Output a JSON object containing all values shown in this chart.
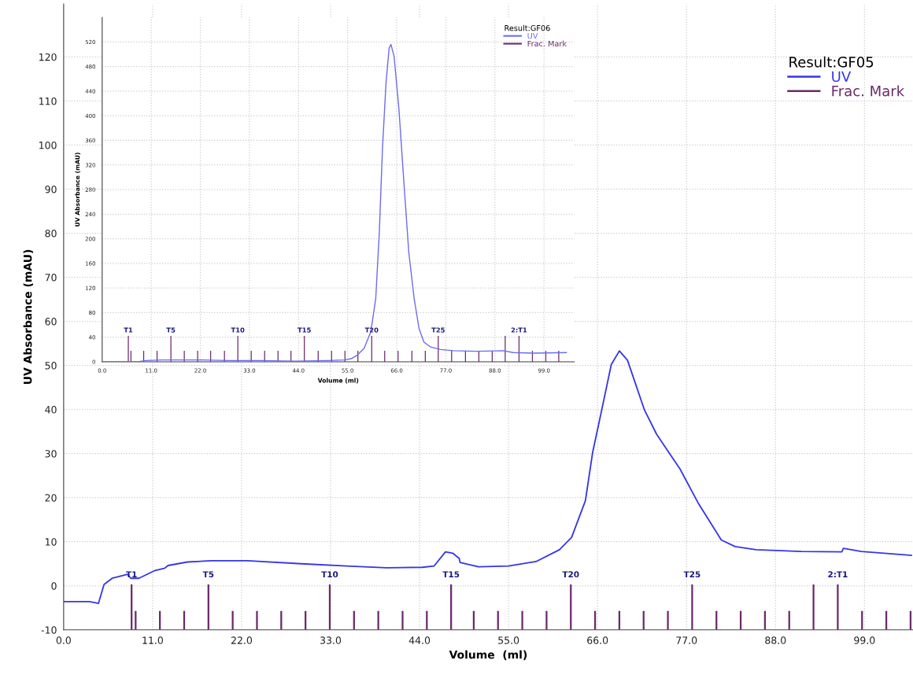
{
  "chart_data": [
    {
      "type": "line",
      "xlabel": "Volume  (ml)",
      "ylabel": "UV Absorbance (mAU)",
      "legend": "top right",
      "legend_title": "Result:GF05",
      "grid": true,
      "xlim": [
        0,
        105
      ],
      "ylim": [
        -10,
        132
      ],
      "xticks": [
        {
          "value": 0,
          "label": "0.0"
        },
        {
          "value": 11,
          "label": "11.0"
        },
        {
          "value": 22,
          "label": "22.0"
        },
        {
          "value": 33,
          "label": "33.0"
        },
        {
          "value": 44,
          "label": "44.0"
        },
        {
          "value": 55,
          "label": "55.0"
        },
        {
          "value": 66,
          "label": "66.0"
        },
        {
          "value": 77,
          "label": "77.0"
        },
        {
          "value": 88,
          "label": "88.0"
        },
        {
          "value": 99,
          "label": "99.0"
        }
      ],
      "yticks": [
        -10,
        0,
        10,
        20,
        30,
        40,
        50,
        60,
        70,
        80,
        90,
        100,
        110,
        120
      ],
      "series": [
        {
          "name": "UV",
          "color": "#3535e8",
          "x": [
            0,
            3.2,
            4.3,
            5.0,
            6.0,
            7.45,
            7.9,
            8.3,
            9.3,
            11.2,
            12.5,
            12.9,
            15.3,
            18.3,
            22.7,
            29.4,
            35.0,
            39.9,
            44.35,
            45.8,
            47.2,
            48.1,
            48.9,
            49.0,
            51.3,
            55.0,
            58.4,
            61.3,
            62.8,
            64.5,
            65.4,
            66.6,
            67.7,
            68.7,
            69.7,
            71.8,
            73.3,
            74.8,
            76.2,
            78.5,
            81.3,
            83.0,
            85.6,
            91.2,
            96.2,
            96.4,
            98.6,
            104.8
          ],
          "values": [
            -3.6,
            -3.6,
            -4.0,
            0.3,
            1.7,
            2.4,
            2.6,
            1.7,
            1.7,
            3.4,
            4.0,
            4.6,
            5.4,
            5.7,
            5.7,
            5.0,
            4.5,
            4.1,
            4.2,
            4.5,
            7.7,
            7.4,
            6.2,
            5.3,
            4.3,
            4.5,
            5.5,
            8.2,
            11.0,
            19.3,
            30.3,
            40.6,
            50.2,
            53.3,
            51.2,
            39.9,
            34.4,
            30.3,
            26.5,
            18.6,
            10.4,
            8.9,
            8.2,
            7.8,
            7.7,
            8.5,
            7.8,
            6.9
          ]
        },
        {
          "name": "Frac. Mark",
          "type": "bar",
          "color": "#6b2a6b",
          "x": [
            8.4,
            8.9,
            11.9,
            14.9,
            17.9,
            20.9,
            23.9,
            26.9,
            29.9,
            32.9,
            35.9,
            38.9,
            41.9,
            44.9,
            47.9,
            50.7,
            53.7,
            56.7,
            59.7,
            62.7,
            65.7,
            68.7,
            71.7,
            74.7,
            77.7,
            80.7,
            83.7,
            86.7,
            89.7,
            92.7,
            95.7,
            98.7,
            101.7,
            104.7
          ],
          "base": [
            -10,
            -10,
            -10,
            -10,
            -10,
            -10,
            -10,
            -10,
            -10,
            -10,
            -10,
            -10,
            -10,
            -10,
            -10,
            -10,
            -10,
            -10,
            -10,
            -10,
            -10,
            -10,
            -10,
            -10,
            -10,
            -10,
            -10,
            -10,
            -10,
            -10,
            -10,
            -10,
            -10,
            -10
          ],
          "values": [
            10.3,
            4.3,
            4.3,
            4.3,
            10.3,
            4.3,
            4.3,
            4.3,
            4.3,
            10.3,
            4.3,
            4.3,
            4.3,
            4.3,
            10.3,
            4.3,
            4.3,
            4.3,
            4.3,
            10.3,
            4.3,
            4.3,
            4.3,
            4.3,
            10.3,
            4.3,
            4.3,
            4.3,
            4.3,
            10.3,
            10.3,
            4.3,
            4.3,
            4.3
          ]
        }
      ],
      "annotations": [
        {
          "text": "T1",
          "x": 8.4,
          "y": 0.3
        },
        {
          "text": "T5",
          "x": 17.9,
          "y": 0.3
        },
        {
          "text": "T10",
          "x": 32.9,
          "y": 0.3
        },
        {
          "text": "T15",
          "x": 47.9,
          "y": 0.3
        },
        {
          "text": "T20",
          "x": 62.7,
          "y": 0.3
        },
        {
          "text": "T25",
          "x": 77.7,
          "y": 0.3
        },
        {
          "text": "2:T1",
          "x": 95.7,
          "y": 0.3
        }
      ]
    },
    {
      "type": "line",
      "xlabel": "Volume (ml)",
      "ylabel": "UV Absorbance (mAU)",
      "legend": "top right",
      "legend_title": "Result:GF06",
      "grid": true,
      "xlim": [
        0,
        105.8
      ],
      "ylim": [
        0,
        560
      ],
      "xticks": [
        {
          "value": 0,
          "label": "0.0"
        },
        {
          "value": 11,
          "label": "11.0"
        },
        {
          "value": 22,
          "label": "22.0"
        },
        {
          "value": 33,
          "label": "33.0"
        },
        {
          "value": 44,
          "label": "44.0"
        },
        {
          "value": 55,
          "label": "55.0"
        },
        {
          "value": 66,
          "label": "66.0"
        },
        {
          "value": 77,
          "label": "77.0"
        },
        {
          "value": 88,
          "label": "88.0"
        },
        {
          "value": 99,
          "label": "99.0"
        }
      ],
      "yticks": [
        0,
        40,
        80,
        120,
        160,
        200,
        240,
        280,
        320,
        360,
        400,
        440,
        480,
        520
      ],
      "series": [
        {
          "name": "UV",
          "color": "#6b6bf0",
          "x": [
            0,
            7.9,
            9.8,
            13.5,
            22.4,
            28.3,
            35.7,
            43.2,
            50.6,
            54.3,
            55.8,
            57.2,
            58.7,
            60.2,
            61.3,
            62.1,
            62.8,
            63.6,
            64.3,
            64.7,
            65.4,
            66.5,
            67.6,
            68.7,
            69.9,
            71.0,
            72.1,
            73.6,
            75.8,
            78.8,
            83.9,
            89.9,
            92.1,
            96.6,
            104.0
          ],
          "values": [
            0,
            0,
            2,
            3,
            3,
            2,
            2,
            1,
            2,
            3,
            5,
            11,
            22,
            49,
            103,
            211,
            346,
            454,
            510,
            516,
            497,
            410,
            292,
            178,
            103,
            54,
            32,
            24,
            20,
            18,
            17,
            18,
            15,
            14,
            15
          ]
        },
        {
          "name": "Frac. Mark",
          "type": "bar",
          "color": "#6b2a6b",
          "x": [
            5.86,
            6.45,
            9.3,
            12.3,
            15.4,
            18.4,
            21.4,
            24.3,
            27.4,
            30.4,
            33.4,
            36.4,
            39.4,
            42.3,
            45.3,
            48.4,
            51.4,
            54.4,
            57.3,
            60.4,
            63.3,
            66.3,
            69.4,
            72.4,
            75.3,
            78.3,
            81.4,
            84.4,
            87.4,
            90.3,
            93.4,
            96.4,
            99.4,
            102.3
          ],
          "base": [
            0,
            0,
            0,
            0,
            0,
            0,
            0,
            0,
            0,
            0,
            0,
            0,
            0,
            0,
            0,
            0,
            0,
            0,
            0,
            0,
            0,
            0,
            0,
            0,
            0,
            0,
            0,
            0,
            0,
            0,
            0,
            0,
            0,
            0
          ],
          "values": [
            42,
            18,
            18,
            18,
            42,
            18,
            18,
            18,
            18,
            42,
            18,
            18,
            18,
            18,
            42,
            18,
            18,
            18,
            18,
            42,
            18,
            18,
            18,
            18,
            42,
            18,
            18,
            18,
            18,
            42,
            42,
            18,
            18,
            18
          ]
        }
      ],
      "annotations": [
        {
          "text": "T1",
          "x": 5.86,
          "y": 42
        },
        {
          "text": "T5",
          "x": 15.4,
          "y": 42
        },
        {
          "text": "T10",
          "x": 30.4,
          "y": 42
        },
        {
          "text": "T15",
          "x": 45.3,
          "y": 42
        },
        {
          "text": "T20",
          "x": 60.4,
          "y": 42
        },
        {
          "text": "T25",
          "x": 75.3,
          "y": 42
        },
        {
          "text": "2:T1",
          "x": 93.4,
          "y": 42
        }
      ]
    }
  ]
}
